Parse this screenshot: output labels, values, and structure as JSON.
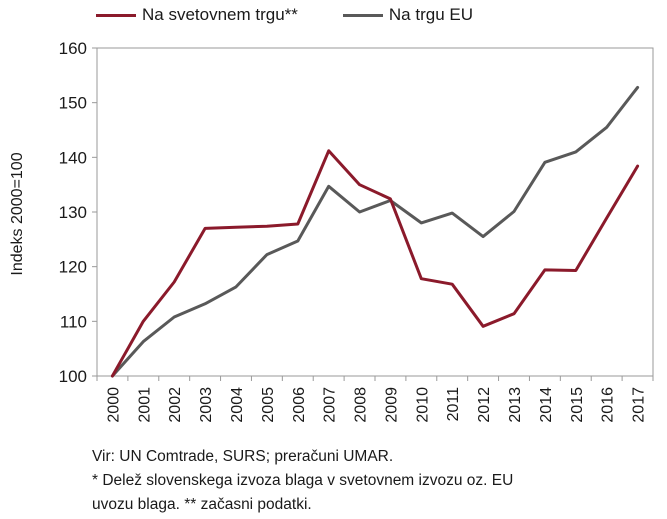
{
  "chart_data": {
    "type": "line",
    "ylabel": "Indeks 2000=100",
    "ylim": [
      100,
      160
    ],
    "yticks": [
      100,
      110,
      120,
      130,
      140,
      150,
      160
    ],
    "categories": [
      "2000",
      "2001",
      "2002",
      "2003",
      "2004",
      "2005",
      "2006",
      "2007",
      "2008",
      "2009",
      "2010",
      "2011",
      "2012",
      "2013",
      "2014",
      "2015",
      "2016",
      "2017"
    ],
    "grid": false,
    "legend_position": "top",
    "series": [
      {
        "name": "Na svetovnem trgu**",
        "color": "#8b1a2b",
        "values": [
          100,
          110.0,
          117.2,
          127.0,
          127.2,
          127.4,
          127.8,
          141.2,
          135.0,
          132.4,
          117.8,
          116.8,
          109.1,
          111.4,
          119.4,
          119.3,
          128.9,
          138.4
        ]
      },
      {
        "name": "Na trgu EU",
        "color": "#595959",
        "values": [
          100,
          106.3,
          110.8,
          113.2,
          116.3,
          122.2,
          124.7,
          134.7,
          130.0,
          132.1,
          128.0,
          129.8,
          125.5,
          130.1,
          139.1,
          141.0,
          145.5,
          152.8
        ]
      }
    ]
  },
  "notes": {
    "source": "Vir: UN Comtrade, SURS; preračuni UMAR.",
    "footnote_line1": "* Delež slovenskega izvoza blaga v svetovnem izvozu oz. EU",
    "footnote_line2": "uvozu blaga. ** začasni podatki."
  }
}
